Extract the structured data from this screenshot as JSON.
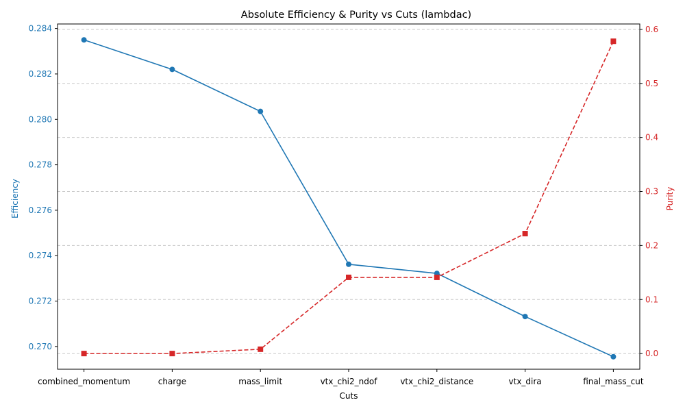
{
  "chart_data": {
    "type": "line",
    "title": "Absolute Efficiency & Purity vs Cuts (lambdac)",
    "xlabel": "Cuts",
    "categories": [
      "combined_momentum",
      "charge",
      "mass_limit",
      "vtx_chi2_ndof",
      "vtx_chi2_distance",
      "vtx_dira",
      "final_mass_cut"
    ],
    "y_left": {
      "label": "Efficiency",
      "color": "#1f77b4",
      "lim": [
        0.269,
        0.2842
      ],
      "ticks": [
        0.27,
        0.272,
        0.274,
        0.276,
        0.278,
        0.28,
        0.282,
        0.284
      ],
      "tick_labels": [
        "0.270",
        "0.272",
        "0.274",
        "0.276",
        "0.278",
        "0.280",
        "0.282",
        "0.284"
      ]
    },
    "y_right": {
      "label": "Purity",
      "color": "#d62728",
      "lim": [
        -0.029,
        0.61
      ],
      "ticks": [
        0.0,
        0.1,
        0.2,
        0.3,
        0.4,
        0.5,
        0.6
      ],
      "tick_labels": [
        "0.0",
        "0.1",
        "0.2",
        "0.3",
        "0.4",
        "0.5",
        "0.6"
      ]
    },
    "series": [
      {
        "key": "efficiency",
        "axis": "left",
        "color": "#1f77b4",
        "linestyle": "solid",
        "marker": "circle",
        "values": [
          0.2835,
          0.2822,
          0.28035,
          0.27362,
          0.27322,
          0.27132,
          0.26955
        ]
      },
      {
        "key": "purity",
        "axis": "right",
        "color": "#d62728",
        "linestyle": "dashed",
        "marker": "square",
        "values": [
          0.0,
          0.0,
          0.008,
          0.141,
          0.141,
          0.222,
          0.578
        ]
      }
    ],
    "grid": "horizontal dashed, right axis ticks",
    "legend": "none"
  }
}
